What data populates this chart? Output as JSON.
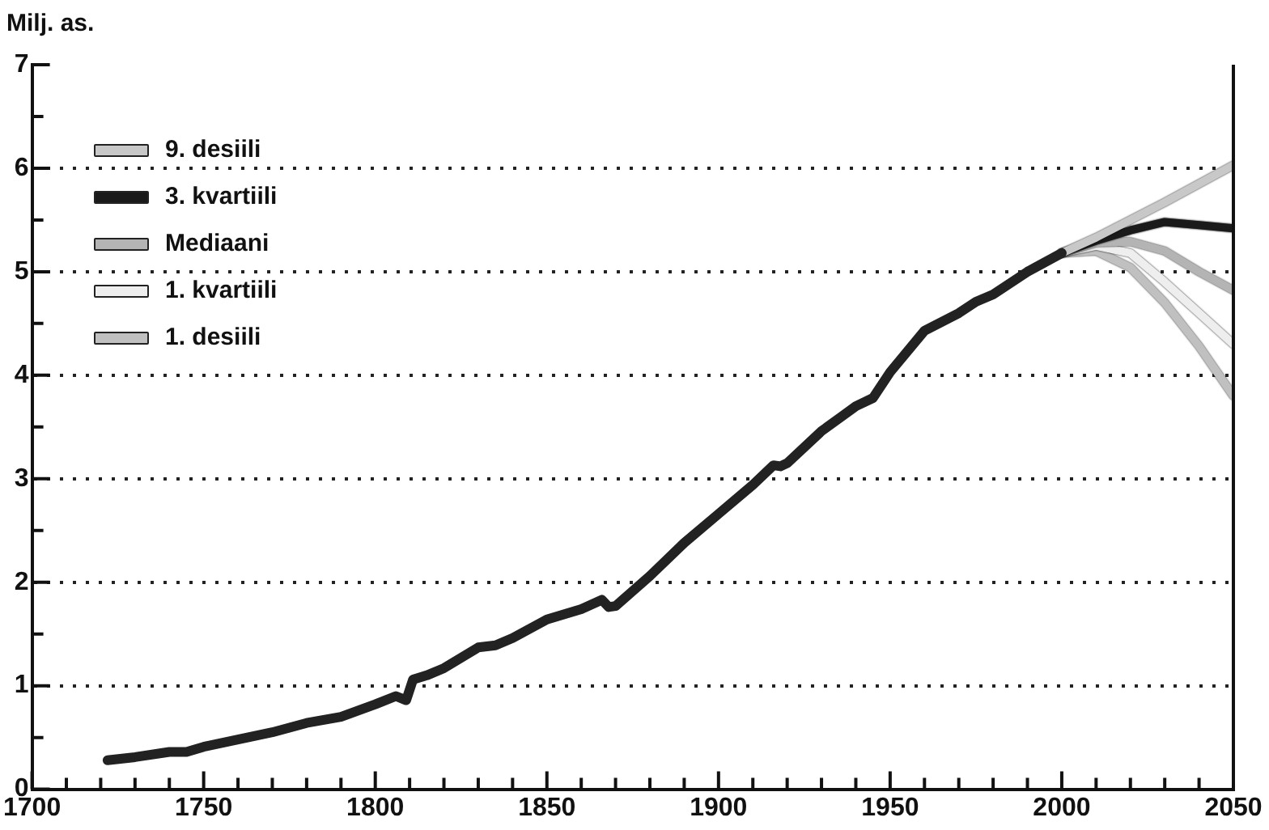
{
  "chart_data": {
    "type": "line",
    "ylabel": "Milj. as.",
    "xlim": [
      1700,
      2050
    ],
    "xticks": [
      1700,
      {
        "value": 1710,
        "label": null
      },
      {
        "value": 1720,
        "label": null
      },
      {
        "value": 1730,
        "label": null
      },
      {
        "value": 1740,
        "label": null
      },
      1750,
      {
        "value": 1760,
        "label": null
      },
      {
        "value": 1770,
        "label": null
      },
      {
        "value": 1780,
        "label": null
      },
      {
        "value": 1790,
        "label": null
      },
      1800,
      {
        "value": 1810,
        "label": null
      },
      {
        "value": 1820,
        "label": null
      },
      {
        "value": 1830,
        "label": null
      },
      {
        "value": 1840,
        "label": null
      },
      1850,
      {
        "value": 1860,
        "label": null
      },
      {
        "value": 1870,
        "label": null
      },
      {
        "value": 1880,
        "label": null
      },
      {
        "value": 1890,
        "label": null
      },
      1900,
      {
        "value": 1910,
        "label": null
      },
      {
        "value": 1920,
        "label": null
      },
      {
        "value": 1930,
        "label": null
      },
      {
        "value": 1940,
        "label": null
      },
      1950,
      {
        "value": 1960,
        "label": null
      },
      {
        "value": 1970,
        "label": null
      },
      {
        "value": 1980,
        "label": null
      },
      {
        "value": 1990,
        "label": null
      },
      2000,
      {
        "value": 2010,
        "label": null
      },
      {
        "value": 2020,
        "label": null
      },
      {
        "value": 2030,
        "label": null
      },
      {
        "value": 2040,
        "label": null
      },
      2050
    ],
    "ylim": [
      0,
      7
    ],
    "yticks": [
      0,
      {
        "value": 0.5,
        "label": null
      },
      1,
      {
        "value": 1.5,
        "label": null
      },
      2,
      {
        "value": 2.5,
        "label": null
      },
      3,
      {
        "value": 3.5,
        "label": null
      },
      4,
      {
        "value": 4.5,
        "label": null
      },
      5,
      {
        "value": 5.5,
        "label": null
      },
      6,
      {
        "value": 6.5,
        "label": null
      },
      7
    ],
    "grid": "y",
    "legend": "top left",
    "marker": "none",
    "line_style": "solid",
    "series": [
      {
        "color": "#222222",
        "x": [
          1722,
          1730,
          1740,
          1745,
          1750,
          1760,
          1770,
          1780,
          1790,
          1800,
          1806,
          1809,
          1811,
          1815,
          1820,
          1830,
          1835,
          1840,
          1850,
          1860,
          1866,
          1868,
          1870,
          1880,
          1890,
          1900,
          1910,
          1916,
          1918,
          1920,
          1930,
          1940,
          1945,
          1950,
          1960,
          1970,
          1975,
          1980,
          1990,
          2000
        ],
        "values": [
          0.28,
          0.31,
          0.36,
          0.36,
          0.41,
          0.48,
          0.55,
          0.64,
          0.7,
          0.82,
          0.9,
          0.86,
          1.06,
          1.1,
          1.17,
          1.37,
          1.39,
          1.46,
          1.64,
          1.74,
          1.83,
          1.76,
          1.77,
          2.06,
          2.38,
          2.66,
          2.94,
          3.13,
          3.12,
          3.15,
          3.46,
          3.7,
          3.78,
          4.03,
          4.43,
          4.6,
          4.71,
          4.78,
          5.0,
          5.18
        ]
      },
      {
        "name": "9. desiili",
        "color": "#c8c8c8",
        "x": [
          2000,
          2010,
          2020,
          2030,
          2040,
          2050
        ],
        "values": [
          5.18,
          5.33,
          5.5,
          5.67,
          5.85,
          6.03
        ]
      },
      {
        "name": "3. kvartiili",
        "color": "#1a1a1a",
        "x": [
          2000,
          2010,
          2020,
          2030,
          2040,
          2050
        ],
        "values": [
          5.18,
          5.3,
          5.4,
          5.48,
          5.45,
          5.42
        ]
      },
      {
        "name": "Mediaani",
        "color": "#b4b4b4",
        "x": [
          2000,
          2010,
          2020,
          2030,
          2040,
          2050
        ],
        "values": [
          5.18,
          5.28,
          5.29,
          5.2,
          5.0,
          4.82
        ]
      },
      {
        "name": "1. kvartiili",
        "color": "#eeeeee",
        "x": [
          2000,
          2010,
          2020,
          2030,
          2040,
          2050
        ],
        "values": [
          5.18,
          5.25,
          5.18,
          4.9,
          4.6,
          4.3
        ]
      },
      {
        "name": "1. desiili",
        "color": "#c0c0c0",
        "x": [
          2000,
          2010,
          2020,
          2030,
          2040,
          2050
        ],
        "values": [
          5.18,
          5.2,
          5.04,
          4.7,
          4.28,
          3.8
        ]
      }
    ]
  }
}
